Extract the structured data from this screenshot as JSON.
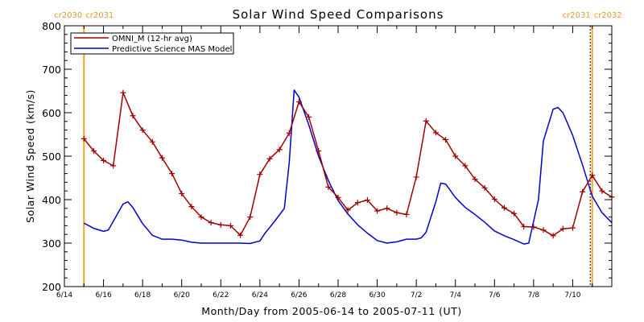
{
  "chart_data": {
    "type": "line",
    "title": "Solar Wind Speed Comparisons",
    "xlabel": "Month/Day from 2005-06-14 to 2005-07-11 (UT)",
    "ylabel": "Solar Wind Speed (km/s)",
    "xlim": [
      "2005-06-14",
      "2005-07-11"
    ],
    "ylim": [
      200,
      800
    ],
    "yticks": [
      200,
      300,
      400,
      500,
      600,
      700,
      800
    ],
    "xticks": [
      {
        "date": "2005-06-14",
        "label": "6/14"
      },
      {
        "date": "2005-06-16",
        "label": "6/16"
      },
      {
        "date": "2005-06-18",
        "label": "6/18"
      },
      {
        "date": "2005-06-20",
        "label": "6/20"
      },
      {
        "date": "2005-06-22",
        "label": "6/22"
      },
      {
        "date": "2005-06-24",
        "label": "6/24"
      },
      {
        "date": "2005-06-26",
        "label": "6/26"
      },
      {
        "date": "2005-06-28",
        "label": "6/28"
      },
      {
        "date": "2005-06-30",
        "label": "6/30"
      },
      {
        "date": "2005-07-02",
        "label": "7/2"
      },
      {
        "date": "2005-07-04",
        "label": "7/4"
      },
      {
        "date": "2005-07-06",
        "label": "7/6"
      },
      {
        "date": "2005-07-08",
        "label": "7/8"
      },
      {
        "date": "2005-07-10",
        "label": "7/10"
      }
    ],
    "grid": false,
    "legend_position": "top-left",
    "carrington_markers": [
      {
        "date": "2005-06-15",
        "left_label": "cr2030",
        "right_label": "cr2031"
      },
      {
        "date": "2005-07-11",
        "left_label": "cr2031",
        "right_label": "cr2032"
      }
    ],
    "series": [
      {
        "name": "OMNI_M (12-hr avg)",
        "color": "#a00000",
        "markers": "plus",
        "points": [
          [
            "2005-06-15 00:00",
            540
          ],
          [
            "2005-06-15 12:00",
            512
          ],
          [
            "2005-06-16 00:00",
            490
          ],
          [
            "2005-06-16 12:00",
            478
          ],
          [
            "2005-06-17 00:00",
            646
          ],
          [
            "2005-06-17 12:00",
            593
          ],
          [
            "2005-06-18 00:00",
            560
          ],
          [
            "2005-06-18 12:00",
            533
          ],
          [
            "2005-06-19 00:00",
            496
          ],
          [
            "2005-06-19 12:00",
            460
          ],
          [
            "2005-06-20 00:00",
            414
          ],
          [
            "2005-06-20 12:00",
            384
          ],
          [
            "2005-06-21 00:00",
            360
          ],
          [
            "2005-06-21 12:00",
            347
          ],
          [
            "2005-06-22 00:00",
            342
          ],
          [
            "2005-06-22 12:00",
            340
          ],
          [
            "2005-06-23 00:00",
            318
          ],
          [
            "2005-06-23 12:00",
            360
          ],
          [
            "2005-06-24 00:00",
            458
          ],
          [
            "2005-06-24 12:00",
            494
          ],
          [
            "2005-06-25 00:00",
            515
          ],
          [
            "2005-06-25 12:00",
            553
          ],
          [
            "2005-06-26 00:00",
            625
          ],
          [
            "2005-06-26 12:00",
            590
          ],
          [
            "2005-06-27 00:00",
            512
          ],
          [
            "2005-06-27 12:00",
            429
          ],
          [
            "2005-06-28 00:00",
            405
          ],
          [
            "2005-06-28 12:00",
            376
          ],
          [
            "2005-06-29 00:00",
            393
          ],
          [
            "2005-06-29 12:00",
            399
          ],
          [
            "2005-06-30 00:00",
            374
          ],
          [
            "2005-06-30 12:00",
            380
          ],
          [
            "2005-07-01 00:00",
            370
          ],
          [
            "2005-07-01 12:00",
            366
          ],
          [
            "2005-07-02 00:00",
            452
          ],
          [
            "2005-07-02 12:00",
            581
          ],
          [
            "2005-07-03 00:00",
            554
          ],
          [
            "2005-07-03 12:00",
            538
          ],
          [
            "2005-07-04 00:00",
            500
          ],
          [
            "2005-07-04 12:00",
            478
          ],
          [
            "2005-07-05 00:00",
            447
          ],
          [
            "2005-07-05 12:00",
            427
          ],
          [
            "2005-07-06 00:00",
            401
          ],
          [
            "2005-07-06 12:00",
            381
          ],
          [
            "2005-07-07 00:00",
            368
          ],
          [
            "2005-07-07 12:00",
            338
          ],
          [
            "2005-07-08 00:00",
            337
          ],
          [
            "2005-07-08 12:00",
            330
          ],
          [
            "2005-07-09 00:00",
            317
          ],
          [
            "2005-07-09 12:00",
            333
          ],
          [
            "2005-07-10 00:00",
            335
          ],
          [
            "2005-07-10 12:00",
            418
          ],
          [
            "2005-07-11 00:00",
            456
          ],
          [
            "2005-07-11 12:00",
            420
          ],
          [
            "2005-07-12 00:00",
            406
          ]
        ]
      },
      {
        "name": "Predictive Science MAS Model",
        "color": "#0000cc",
        "markers": "none",
        "points": [
          [
            "2005-06-15 00:00",
            346
          ],
          [
            "2005-06-15 12:00",
            334
          ],
          [
            "2005-06-16 00:00",
            327
          ],
          [
            "2005-06-16 06:00",
            330
          ],
          [
            "2005-06-16 12:00",
            350
          ],
          [
            "2005-06-17 00:00",
            390
          ],
          [
            "2005-06-17 06:00",
            395
          ],
          [
            "2005-06-17 12:00",
            382
          ],
          [
            "2005-06-18 00:00",
            345
          ],
          [
            "2005-06-18 12:00",
            318
          ],
          [
            "2005-06-19 00:00",
            309
          ],
          [
            "2005-06-19 12:00",
            309
          ],
          [
            "2005-06-20 00:00",
            307
          ],
          [
            "2005-06-20 12:00",
            302
          ],
          [
            "2005-06-21 00:00",
            300
          ],
          [
            "2005-06-22 00:00",
            300
          ],
          [
            "2005-06-23 00:00",
            300
          ],
          [
            "2005-06-23 12:00",
            299
          ],
          [
            "2005-06-24 00:00",
            305
          ],
          [
            "2005-06-24 06:00",
            322
          ],
          [
            "2005-06-24 18:00",
            350
          ],
          [
            "2005-06-25 06:00",
            380
          ],
          [
            "2005-06-25 12:00",
            485
          ],
          [
            "2005-06-25 18:00",
            652
          ],
          [
            "2005-06-26 00:00",
            636
          ],
          [
            "2005-06-26 12:00",
            572
          ],
          [
            "2005-06-27 00:00",
            500
          ],
          [
            "2005-06-27 12:00",
            444
          ],
          [
            "2005-06-28 00:00",
            398
          ],
          [
            "2005-06-28 12:00",
            367
          ],
          [
            "2005-06-29 00:00",
            342
          ],
          [
            "2005-06-29 12:00",
            323
          ],
          [
            "2005-06-30 00:00",
            306
          ],
          [
            "2005-06-30 12:00",
            300
          ],
          [
            "2005-07-01 00:00",
            303
          ],
          [
            "2005-07-01 12:00",
            309
          ],
          [
            "2005-07-02 00:00",
            309
          ],
          [
            "2005-07-02 06:00",
            312
          ],
          [
            "2005-07-02 12:00",
            325
          ],
          [
            "2005-07-03 00:00",
            395
          ],
          [
            "2005-07-03 06:00",
            438
          ],
          [
            "2005-07-03 12:00",
            436
          ],
          [
            "2005-07-04 00:00",
            405
          ],
          [
            "2005-07-04 12:00",
            382
          ],
          [
            "2005-07-05 00:00",
            366
          ],
          [
            "2005-07-05 12:00",
            348
          ],
          [
            "2005-07-06 00:00",
            328
          ],
          [
            "2005-07-06 12:00",
            317
          ],
          [
            "2005-07-07 00:00",
            308
          ],
          [
            "2005-07-07 12:00",
            298
          ],
          [
            "2005-07-07 18:00",
            300
          ],
          [
            "2005-07-08 06:00",
            400
          ],
          [
            "2005-07-08 12:00",
            535
          ],
          [
            "2005-07-09 00:00",
            608
          ],
          [
            "2005-07-09 06:00",
            612
          ],
          [
            "2005-07-09 12:00",
            600
          ],
          [
            "2005-07-10 00:00",
            548
          ],
          [
            "2005-07-10 12:00",
            480
          ],
          [
            "2005-07-11 00:00",
            408
          ],
          [
            "2005-07-11 12:00",
            370
          ],
          [
            "2005-07-12 00:00",
            347
          ]
        ]
      }
    ]
  }
}
